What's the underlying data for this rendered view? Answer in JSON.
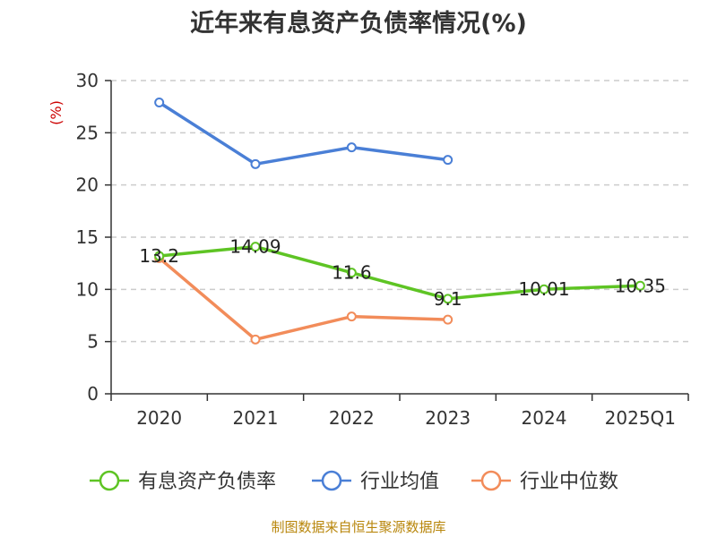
{
  "chart_data": {
    "type": "line",
    "title": "近年来有息资产负债率情况(%)",
    "ylabel": "(%)",
    "categories": [
      "2020",
      "2021",
      "2022",
      "2023",
      "2024",
      "2025Q1"
    ],
    "ylim": [
      0,
      30
    ],
    "yticks": [
      0,
      5,
      10,
      15,
      20,
      25,
      30
    ],
    "grid": true,
    "legend_position": "bottom",
    "series": [
      {
        "name": "有息资产负债率",
        "color": "#5ec424",
        "values": [
          13.2,
          14.09,
          11.6,
          9.1,
          10.01,
          10.35
        ],
        "labels": [
          "13.2",
          "14.09",
          "11.6",
          "9.1",
          "10.01",
          "10.35"
        ]
      },
      {
        "name": "行业均值",
        "color": "#4a7fd6",
        "values": [
          27.9,
          22.0,
          23.6,
          22.4,
          null,
          null
        ]
      },
      {
        "name": "行业中位数",
        "color": "#f28c5a",
        "values": [
          13.0,
          5.2,
          7.4,
          7.1,
          null,
          null
        ]
      }
    ]
  },
  "footer": "制图数据来自恒生聚源数据库",
  "colors": {
    "unit_label": "#cc0000",
    "axis": "#333333",
    "grid": "#cccccc"
  }
}
